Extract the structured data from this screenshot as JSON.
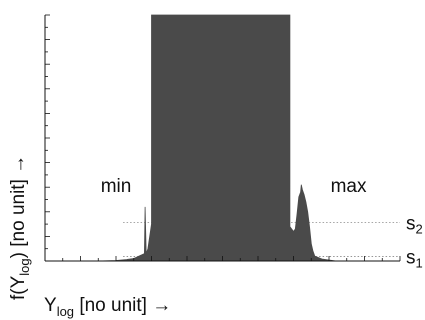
{
  "chart_data": {
    "type": "area",
    "xlabel": {
      "main": "Y",
      "sub": "log",
      "rest": "[no unit]",
      "arrow": "→"
    },
    "ylabel": {
      "pre": "f(Y",
      "sub": "log",
      "post": ")",
      "rest": "[no unit]",
      "arrow": "→"
    },
    "xlim": [
      0,
      1
    ],
    "ylim": [
      0,
      1
    ],
    "grid": false,
    "fill_color": "#4a4a4a",
    "series": [
      {
        "x": [
          0.0,
          0.15,
          0.2,
          0.23,
          0.25,
          0.28,
          0.282,
          0.285,
          0.29,
          0.3,
          0.3,
          0.69,
          0.69,
          0.7,
          0.705,
          0.71,
          0.715,
          0.72,
          0.722,
          0.725,
          0.73,
          0.735,
          0.74,
          0.745,
          0.75,
          0.755,
          0.76,
          0.78,
          0.82,
          1.0
        ],
        "values": [
          0.0,
          0.0,
          0.002,
          0.006,
          0.01,
          0.03,
          0.22,
          0.03,
          0.05,
          0.15,
          1.0,
          1.0,
          0.14,
          0.12,
          0.13,
          0.19,
          0.26,
          0.28,
          0.31,
          0.29,
          0.27,
          0.24,
          0.2,
          0.14,
          0.07,
          0.04,
          0.02,
          0.008,
          0.0,
          0.0
        ]
      }
    ],
    "annotations": [
      {
        "text": "min",
        "x": 0.2,
        "y": 0.28
      },
      {
        "text": "max",
        "x": 0.855,
        "y": 0.28
      }
    ],
    "reference_lines": [
      {
        "label": "s",
        "subscript": "2",
        "y": 0.157
      },
      {
        "label": "s",
        "subscript": "1",
        "y": 0.018
      }
    ]
  }
}
